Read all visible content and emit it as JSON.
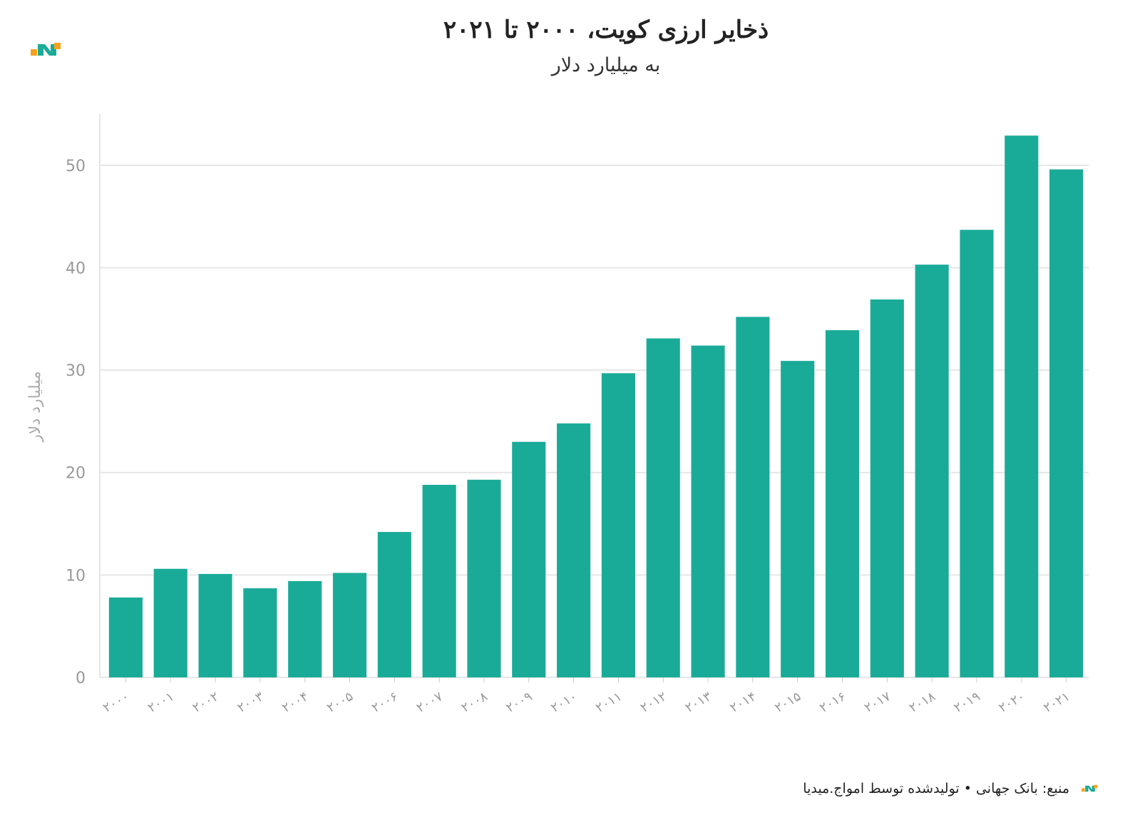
{
  "title": "ذخایر ارزی کویت، ۲۰۰۰ تا ۲۰۲۱",
  "subtitle": "به میلیارد دلار",
  "footer": "منبع: بانک جهانی • تولیدشده توسط امواج.میدیا",
  "chart_data": {
    "type": "bar",
    "ylabel": "میلیارد دلار",
    "xlabel": "",
    "ylim": [
      0,
      55
    ],
    "yticks": [
      0,
      10,
      20,
      30,
      40,
      50
    ],
    "grid": true,
    "bar_color": "#1aab98",
    "categories": [
      "۲۰۰۰",
      "۲۰۰۱",
      "۲۰۰۲",
      "۲۰۰۳",
      "۲۰۰۴",
      "۲۰۰۵",
      "۲۰۰۶",
      "۲۰۰۷",
      "۲۰۰۸",
      "۲۰۰۹",
      "۲۰۱۰",
      "۲۰۱۱",
      "۲۰۱۲",
      "۲۰۱۳",
      "۲۰۱۴",
      "۲۰۱۵",
      "۲۰۱۶",
      "۲۰۱۷",
      "۲۰۱۸",
      "۲۰۱۹",
      "۲۰۲۰",
      "۲۰۲۱"
    ],
    "values": [
      7.8,
      10.6,
      10.1,
      8.7,
      9.4,
      10.2,
      14.2,
      18.8,
      19.3,
      23.0,
      24.8,
      29.7,
      33.1,
      32.4,
      35.2,
      30.9,
      33.9,
      36.9,
      40.3,
      43.7,
      52.9,
      49.6
    ]
  }
}
